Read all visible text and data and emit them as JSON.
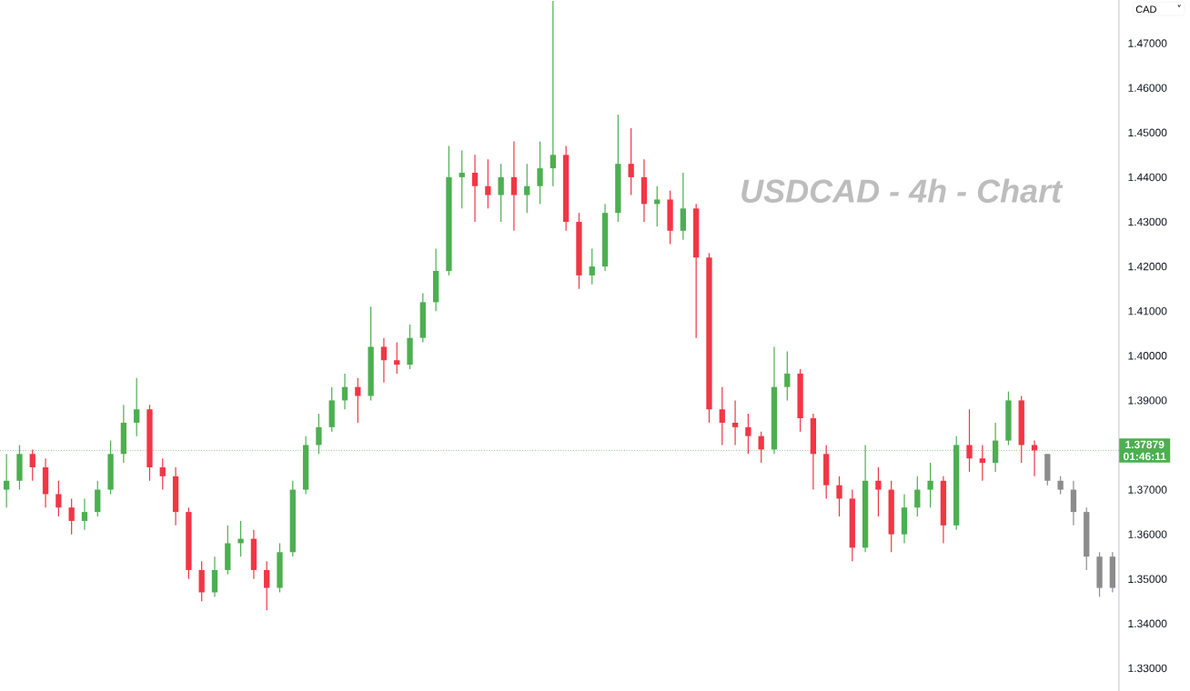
{
  "chart_data": {
    "type": "candlestick",
    "title": "USDCAD - 4h - Chart",
    "categories": [
      null,
      null,
      null,
      null,
      null,
      null,
      null,
      null,
      null,
      null,
      null,
      null,
      null,
      null,
      null,
      null,
      null,
      null,
      null,
      null,
      null,
      null,
      null,
      null,
      null,
      null,
      null,
      null,
      null,
      null,
      null,
      null,
      null,
      null,
      null,
      null,
      null,
      null,
      null,
      null,
      null,
      null,
      null,
      null,
      null,
      null,
      null,
      null,
      null,
      null,
      null,
      null,
      null,
      null,
      null,
      null,
      null,
      null,
      null,
      null,
      null,
      null,
      null,
      null,
      null,
      null,
      null,
      null,
      null,
      null,
      null,
      null,
      null,
      null,
      null,
      null,
      null,
      null,
      null,
      null,
      null,
      null,
      null,
      null,
      null,
      null
    ],
    "ohlc": [
      [
        1.37,
        1.378,
        1.366,
        1.372
      ],
      [
        1.372,
        1.38,
        1.37,
        1.378
      ],
      [
        1.378,
        1.379,
        1.372,
        1.375
      ],
      [
        1.375,
        1.377,
        1.366,
        1.369
      ],
      [
        1.369,
        1.372,
        1.364,
        1.366
      ],
      [
        1.366,
        1.368,
        1.36,
        1.363
      ],
      [
        1.363,
        1.368,
        1.361,
        1.365
      ],
      [
        1.365,
        1.372,
        1.364,
        1.37
      ],
      [
        1.37,
        1.381,
        1.369,
        1.378
      ],
      [
        1.378,
        1.389,
        1.376,
        1.385
      ],
      [
        1.385,
        1.395,
        1.382,
        1.388
      ],
      [
        1.388,
        1.389,
        1.372,
        1.375
      ],
      [
        1.375,
        1.377,
        1.37,
        1.373
      ],
      [
        1.373,
        1.375,
        1.362,
        1.365
      ],
      [
        1.365,
        1.366,
        1.35,
        1.352
      ],
      [
        1.352,
        1.354,
        1.345,
        1.347
      ],
      [
        1.347,
        1.355,
        1.346,
        1.352
      ],
      [
        1.352,
        1.362,
        1.351,
        1.358
      ],
      [
        1.358,
        1.363,
        1.355,
        1.359
      ],
      [
        1.359,
        1.361,
        1.35,
        1.352
      ],
      [
        1.352,
        1.354,
        1.343,
        1.348
      ],
      [
        1.348,
        1.358,
        1.347,
        1.356
      ],
      [
        1.356,
        1.372,
        1.355,
        1.37
      ],
      [
        1.37,
        1.382,
        1.369,
        1.38
      ],
      [
        1.38,
        1.387,
        1.378,
        1.384
      ],
      [
        1.384,
        1.393,
        1.383,
        1.39
      ],
      [
        1.39,
        1.396,
        1.388,
        1.393
      ],
      [
        1.393,
        1.395,
        1.385,
        1.391
      ],
      [
        1.391,
        1.411,
        1.39,
        1.402
      ],
      [
        1.402,
        1.404,
        1.394,
        1.399
      ],
      [
        1.399,
        1.403,
        1.396,
        1.398
      ],
      [
        1.398,
        1.407,
        1.397,
        1.404
      ],
      [
        1.404,
        1.414,
        1.403,
        1.412
      ],
      [
        1.412,
        1.424,
        1.41,
        1.419
      ],
      [
        1.419,
        1.447,
        1.418,
        1.44
      ],
      [
        1.44,
        1.446,
        1.433,
        1.441
      ],
      [
        1.441,
        1.445,
        1.43,
        1.438
      ],
      [
        1.438,
        1.444,
        1.433,
        1.436
      ],
      [
        1.436,
        1.443,
        1.43,
        1.44
      ],
      [
        1.44,
        1.448,
        1.428,
        1.436
      ],
      [
        1.436,
        1.443,
        1.432,
        1.438
      ],
      [
        1.438,
        1.448,
        1.434,
        1.442
      ],
      [
        1.442,
        1.4795,
        1.438,
        1.445
      ],
      [
        1.445,
        1.447,
        1.428,
        1.43
      ],
      [
        1.43,
        1.432,
        1.415,
        1.418
      ],
      [
        1.418,
        1.424,
        1.416,
        1.42
      ],
      [
        1.42,
        1.434,
        1.419,
        1.432
      ],
      [
        1.432,
        1.454,
        1.43,
        1.443
      ],
      [
        1.443,
        1.451,
        1.436,
        1.44
      ],
      [
        1.44,
        1.444,
        1.43,
        1.434
      ],
      [
        1.434,
        1.438,
        1.429,
        1.435
      ],
      [
        1.435,
        1.437,
        1.425,
        1.428
      ],
      [
        1.428,
        1.441,
        1.426,
        1.433
      ],
      [
        1.433,
        1.434,
        1.404,
        1.422
      ],
      [
        1.422,
        1.423,
        1.385,
        1.388
      ],
      [
        1.388,
        1.393,
        1.38,
        1.385
      ],
      [
        1.385,
        1.39,
        1.38,
        1.384
      ],
      [
        1.384,
        1.387,
        1.378,
        1.382
      ],
      [
        1.382,
        1.383,
        1.376,
        1.379
      ],
      [
        1.379,
        1.402,
        1.378,
        1.393
      ],
      [
        1.393,
        1.401,
        1.39,
        1.396
      ],
      [
        1.396,
        1.397,
        1.383,
        1.386
      ],
      [
        1.386,
        1.387,
        1.37,
        1.378
      ],
      [
        1.378,
        1.38,
        1.368,
        1.371
      ],
      [
        1.371,
        1.373,
        1.364,
        1.368
      ],
      [
        1.368,
        1.37,
        1.354,
        1.357
      ],
      [
        1.357,
        1.38,
        1.356,
        1.372
      ],
      [
        1.372,
        1.375,
        1.364,
        1.37
      ],
      [
        1.37,
        1.372,
        1.356,
        1.36
      ],
      [
        1.36,
        1.369,
        1.358,
        1.366
      ],
      [
        1.366,
        1.373,
        1.364,
        1.37
      ],
      [
        1.37,
        1.376,
        1.366,
        1.372
      ],
      [
        1.372,
        1.373,
        1.358,
        1.362
      ],
      [
        1.362,
        1.382,
        1.361,
        1.38
      ],
      [
        1.38,
        1.388,
        1.374,
        1.377
      ],
      [
        1.377,
        1.38,
        1.372,
        1.376
      ],
      [
        1.376,
        1.385,
        1.374,
        1.381
      ],
      [
        1.381,
        1.392,
        1.38,
        1.39
      ],
      [
        1.39,
        1.391,
        1.376,
        1.38
      ],
      [
        1.38,
        1.381,
        1.373,
        1.37879
      ],
      [
        1.378,
        1.378,
        1.371,
        1.372
      ],
      [
        1.372,
        1.373,
        1.369,
        1.37
      ],
      [
        1.37,
        1.372,
        1.362,
        1.365
      ],
      [
        1.365,
        1.366,
        1.352,
        1.355
      ],
      [
        1.355,
        1.356,
        1.346,
        1.348
      ],
      [
        1.348,
        1.356,
        1.347,
        1.355
      ]
    ],
    "colors": [
      "#4caf50",
      "#4caf50",
      "#f23645",
      "#f23645",
      "#f23645",
      "#f23645",
      "#4caf50",
      "#4caf50",
      "#4caf50",
      "#4caf50",
      "#4caf50",
      "#f23645",
      "#f23645",
      "#f23645",
      "#f23645",
      "#f23645",
      "#4caf50",
      "#4caf50",
      "#4caf50",
      "#f23645",
      "#f23645",
      "#4caf50",
      "#4caf50",
      "#4caf50",
      "#4caf50",
      "#4caf50",
      "#4caf50",
      "#f23645",
      "#4caf50",
      "#f23645",
      "#f23645",
      "#4caf50",
      "#4caf50",
      "#4caf50",
      "#4caf50",
      "#4caf50",
      "#f23645",
      "#f23645",
      "#4caf50",
      "#f23645",
      "#4caf50",
      "#4caf50",
      "#4caf50",
      "#f23645",
      "#f23645",
      "#4caf50",
      "#4caf50",
      "#4caf50",
      "#f23645",
      "#f23645",
      "#4caf50",
      "#f23645",
      "#4caf50",
      "#f23645",
      "#f23645",
      "#f23645",
      "#f23645",
      "#f23645",
      "#f23645",
      "#4caf50",
      "#4caf50",
      "#f23645",
      "#f23645",
      "#f23645",
      "#f23645",
      "#f23645",
      "#4caf50",
      "#f23645",
      "#f23645",
      "#4caf50",
      "#4caf50",
      "#4caf50",
      "#f23645",
      "#4caf50",
      "#f23645",
      "#f23645",
      "#4caf50",
      "#4caf50",
      "#f23645",
      "#f23645",
      "#8c8c8c",
      "#8c8c8c",
      "#8c8c8c",
      "#8c8c8c",
      "#8c8c8c",
      "#8c8c8c"
    ],
    "ylim": [
      1.3249,
      1.4797
    ],
    "yticks": [
      {
        "value": 1.33,
        "label": "1.33000"
      },
      {
        "value": 1.34,
        "label": "1.34000"
      },
      {
        "value": 1.35,
        "label": "1.35000"
      },
      {
        "value": 1.36,
        "label": "1.36000"
      },
      {
        "value": 1.37,
        "label": "1.37000"
      },
      {
        "value": 1.39,
        "label": "1.39000"
      },
      {
        "value": 1.4,
        "label": "1.40000"
      },
      {
        "value": 1.41,
        "label": "1.41000"
      },
      {
        "value": 1.42,
        "label": "1.42000"
      },
      {
        "value": 1.43,
        "label": "1.43000"
      },
      {
        "value": 1.44,
        "label": "1.44000"
      },
      {
        "value": 1.45,
        "label": "1.45000"
      },
      {
        "value": 1.46,
        "label": "1.46000"
      },
      {
        "value": 1.47,
        "label": "1.47000"
      }
    ],
    "ref_lines": [
      {
        "axis": "y",
        "value": 1.37879,
        "label": "1.37879",
        "color": "#4caf50",
        "line_style": "dotted"
      }
    ],
    "annotations": [
      "01:46:11",
      "CAD",
      "˅"
    ],
    "tick_labels": "y"
  }
}
